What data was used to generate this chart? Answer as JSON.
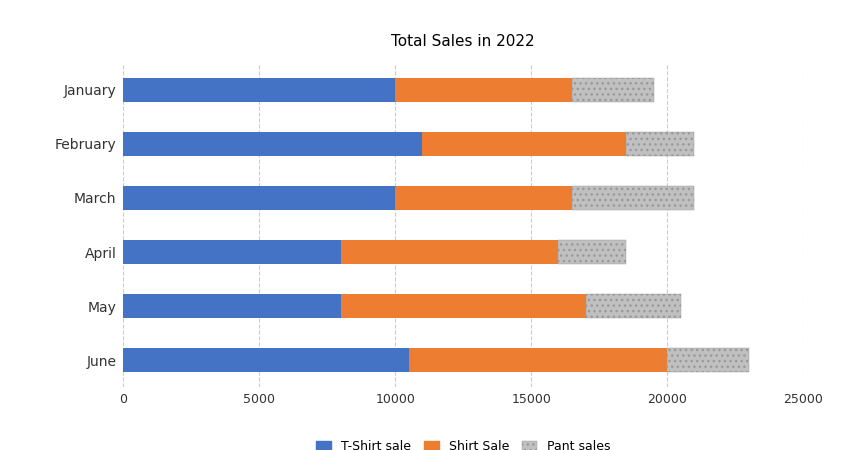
{
  "title": "Total Sales in 2022",
  "categories": [
    "January",
    "February",
    "March",
    "April",
    "May",
    "June"
  ],
  "tshirt_sales": [
    10000,
    11000,
    10000,
    8000,
    8000,
    10500
  ],
  "shirt_sales": [
    6500,
    7500,
    6500,
    8000,
    9000,
    9500
  ],
  "pant_sales": [
    3000,
    2500,
    4500,
    2500,
    3500,
    3000
  ],
  "colors": {
    "tshirt": "#4472C4",
    "shirt": "#ED7D31",
    "pant": "#C0C0C0"
  },
  "legend_labels": [
    "T-Shirt sale",
    "Shirt Sale",
    "Pant sales"
  ],
  "xlim": [
    0,
    25000
  ],
  "xticks": [
    0,
    5000,
    10000,
    15000,
    20000,
    25000
  ],
  "header_color": "#4B3080",
  "bg_color": "#FFFFFF",
  "grid_color": "#CCCCCC",
  "title_fontsize": 11,
  "bar_height": 0.45
}
